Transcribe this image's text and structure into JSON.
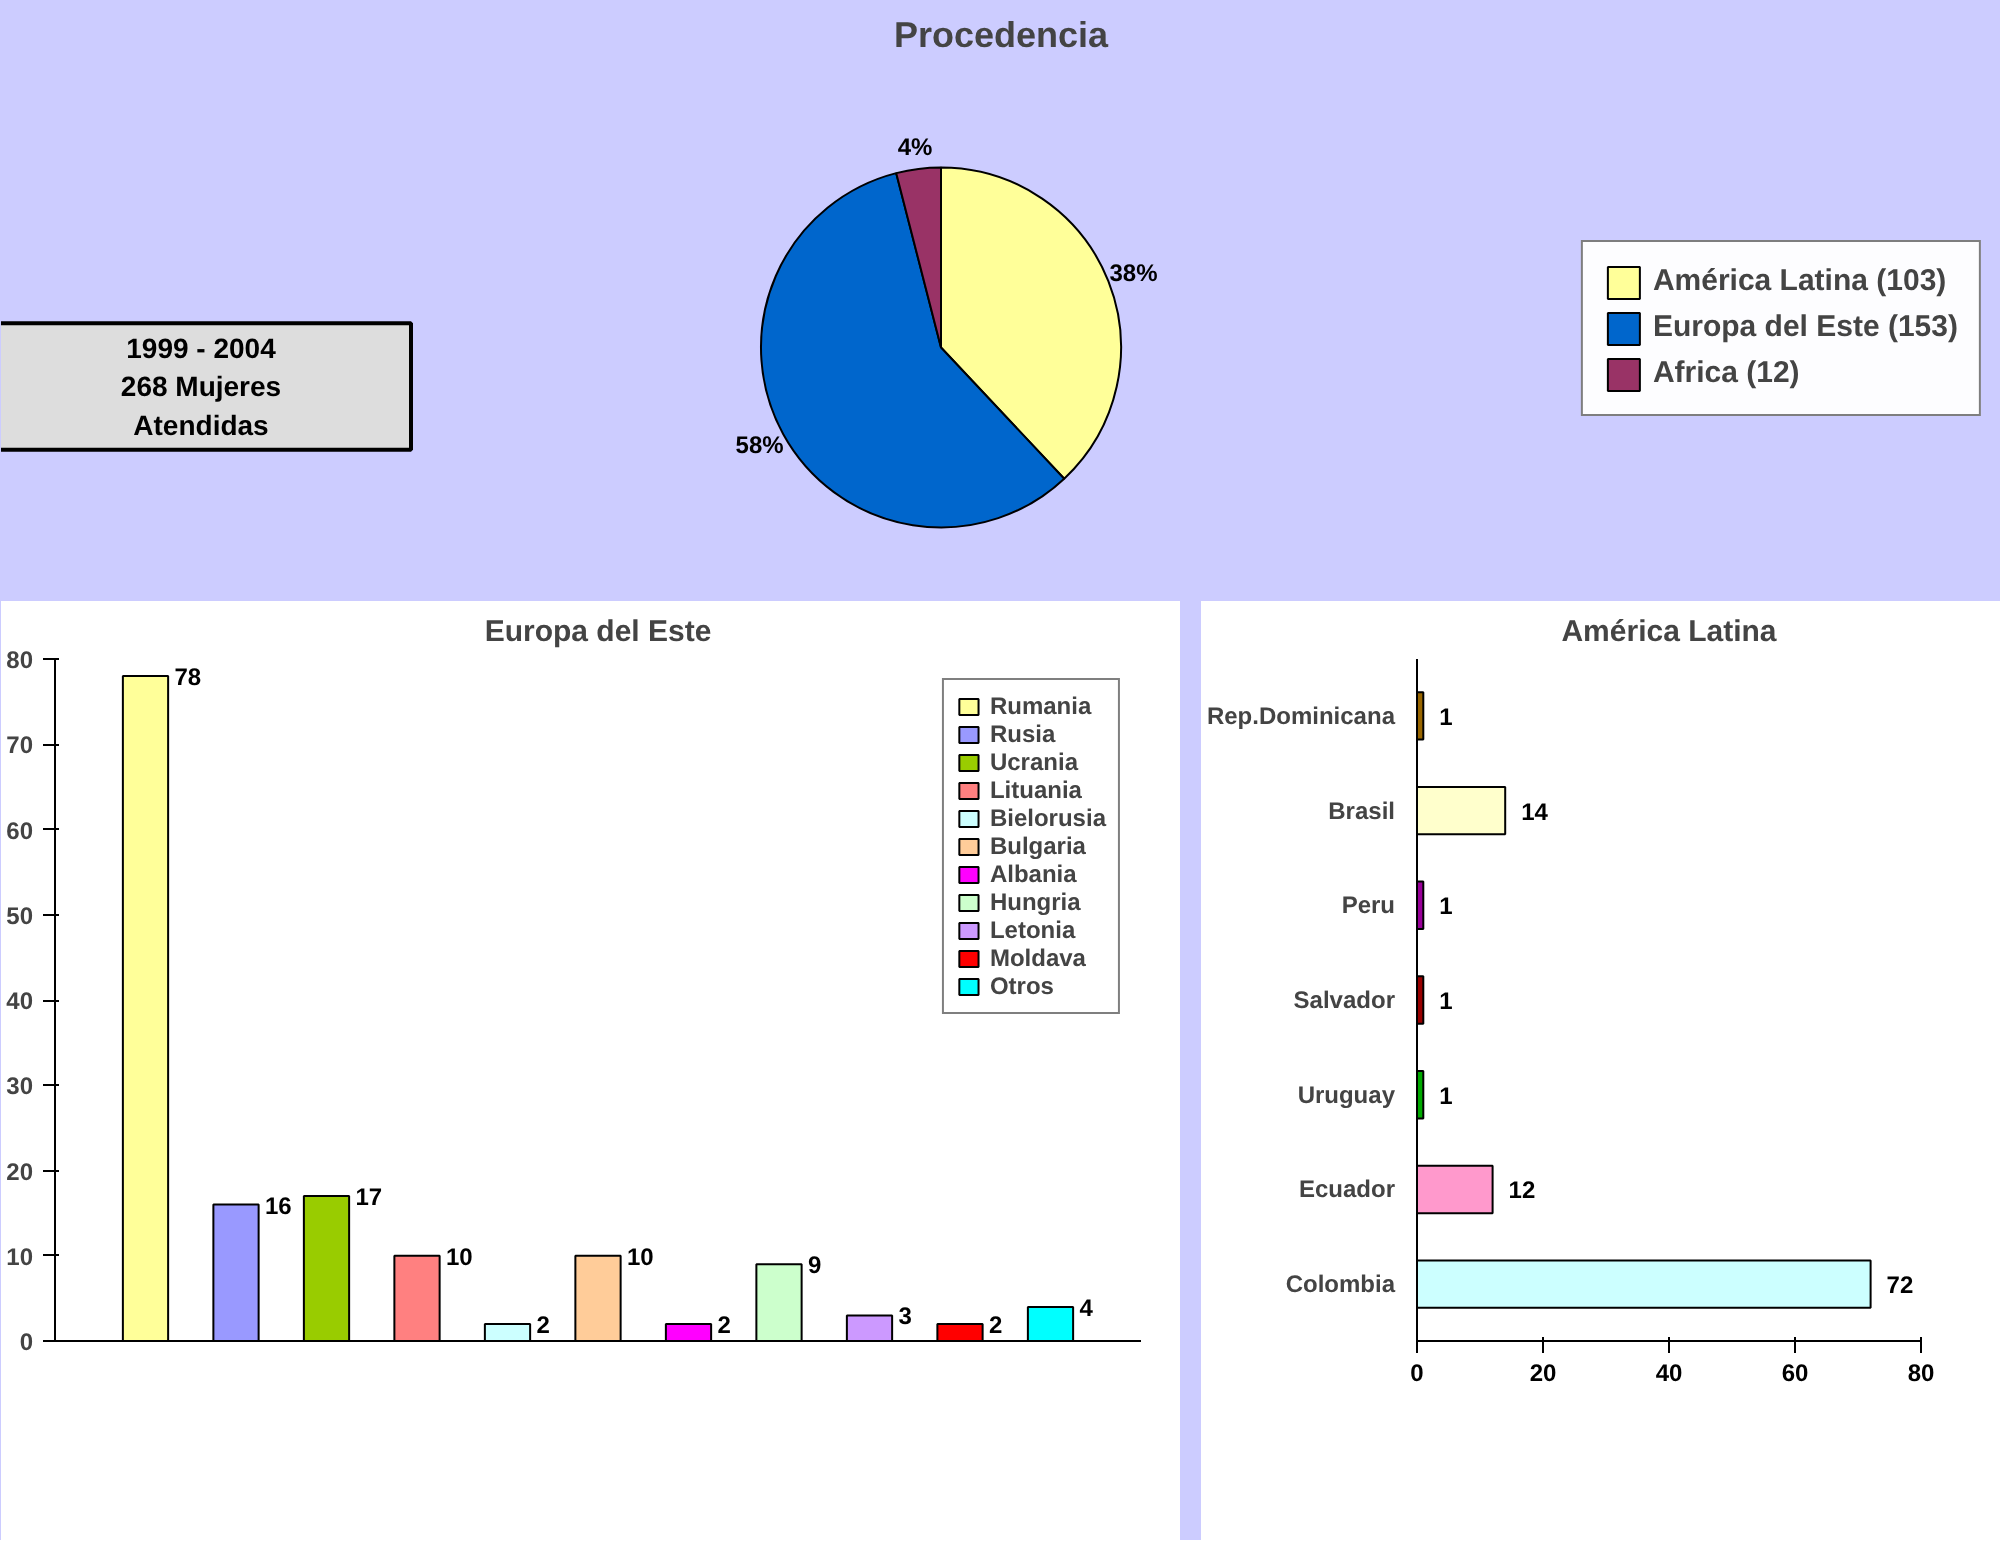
{
  "chart_data": [
    {
      "type": "pie",
      "title": "Procedencia",
      "categories": [
        "América Latina (103)",
        "Europa del Este (153)",
        "Africa (12)"
      ],
      "values": [
        38,
        58,
        4
      ],
      "colors": [
        "#ffff99",
        "#0066cc",
        "#993366"
      ],
      "value_labels": [
        "38%",
        "58%",
        "4%"
      ],
      "legend": "right",
      "annotations": [
        "1999 - 2004\n268 Mujeres\nAtendidas"
      ]
    },
    {
      "type": "bar",
      "title": "Europa del Este",
      "categories": [
        null
      ],
      "series": [
        {
          "name": "Rumania",
          "color": "#ffff99",
          "values": [
            78
          ]
        },
        {
          "name": "Rusia",
          "color": "#9999ff",
          "values": [
            16
          ]
        },
        {
          "name": "Ucrania",
          "color": "#99cc00",
          "values": [
            17
          ]
        },
        {
          "name": "Lituania",
          "color": "#ff8080",
          "values": [
            10
          ]
        },
        {
          "name": "Bielorusia",
          "color": "#ccffff",
          "values": [
            2
          ]
        },
        {
          "name": "Bulgaria",
          "color": "#ffcc99",
          "values": [
            10
          ]
        },
        {
          "name": "Albania",
          "color": "#ff00ff",
          "values": [
            2
          ]
        },
        {
          "name": "Hungria",
          "color": "#ccffcc",
          "values": [
            9
          ]
        },
        {
          "name": "Letonia",
          "color": "#cc99ff",
          "values": [
            3
          ]
        },
        {
          "name": "Moldava",
          "color": "#ff0000",
          "values": [
            2
          ]
        },
        {
          "name": "Otros",
          "color": "#00ffff",
          "values": [
            4
          ]
        }
      ],
      "ylim": [
        0,
        80
      ],
      "yticks": [
        0,
        10,
        20,
        30,
        40,
        50,
        60,
        70,
        80
      ],
      "data_labels": true,
      "legend": "top right",
      "tick_labels": "y",
      "grid": false
    },
    {
      "type": "bar",
      "orientation": "horizontal",
      "title": "América Latina",
      "categories": [
        "Rep.Dominicana",
        "Brasil",
        "Peru",
        "Salvador",
        "Uruguay",
        "Ecuador",
        "Colombia"
      ],
      "values": [
        1,
        14,
        1,
        1,
        1,
        12,
        72
      ],
      "colors": [
        "#996600",
        "#ffffcc",
        "#990099",
        "#990000",
        "#00aa00",
        "#ff99cc",
        "#ccffff"
      ],
      "xlim": [
        0,
        80
      ],
      "xticks": [
        0,
        20,
        40,
        60,
        80
      ],
      "data_labels": true,
      "grid": false
    }
  ]
}
